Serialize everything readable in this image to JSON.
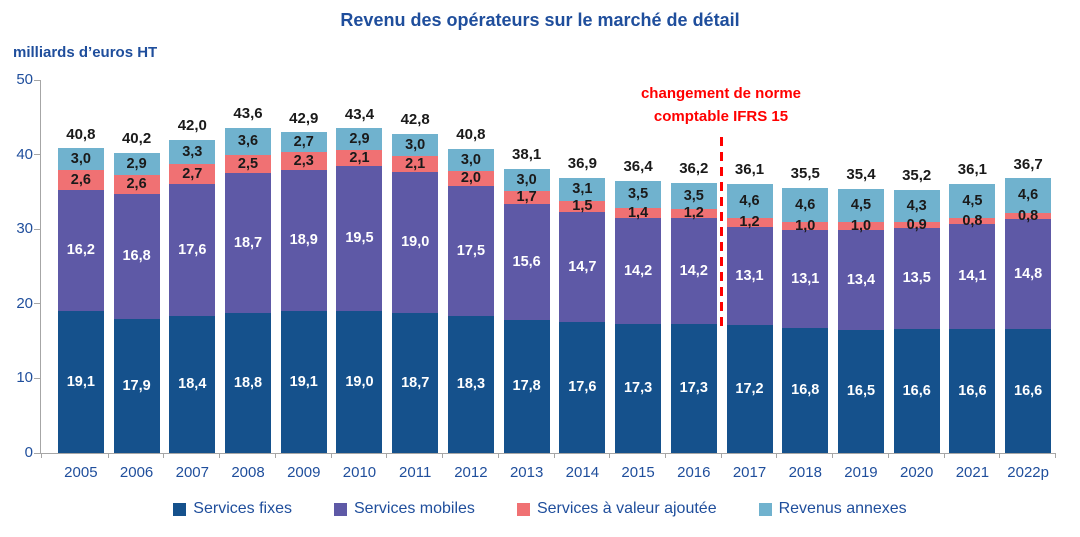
{
  "chart_data": {
    "type": "bar",
    "stacked": true,
    "title": "Revenu des opérateurs sur le marché de détail",
    "unit_label": "milliards d’euros HT",
    "ylim": [
      0,
      50
    ],
    "yticks": [
      0,
      10,
      20,
      30,
      40,
      50
    ],
    "grid": false,
    "legend_position": "bottom",
    "categories": [
      "2005",
      "2006",
      "2007",
      "2008",
      "2009",
      "2010",
      "2011",
      "2012",
      "2013",
      "2014",
      "2015",
      "2016",
      "2017",
      "2018",
      "2019",
      "2020",
      "2021",
      "2022p"
    ],
    "series": [
      {
        "name": "Services fixes",
        "color": "#15518C",
        "label_color": "#FFFFFF",
        "values": [
          19.1,
          17.9,
          18.4,
          18.8,
          19.1,
          19.0,
          18.7,
          18.3,
          17.8,
          17.6,
          17.3,
          17.3,
          17.2,
          16.8,
          16.5,
          16.6,
          16.6,
          16.6
        ],
        "labels": [
          "19,1",
          "17,9",
          "18,4",
          "18,8",
          "19,1",
          "19,0",
          "18,7",
          "18,3",
          "17,8",
          "17,6",
          "17,3",
          "17,3",
          "17,2",
          "16,8",
          "16,5",
          "16,6",
          "16,6",
          "16,6"
        ]
      },
      {
        "name": "Services mobiles",
        "color": "#5E59A6",
        "label_color": "#FFFFFF",
        "values": [
          16.2,
          16.8,
          17.6,
          18.7,
          18.9,
          19.5,
          19.0,
          17.5,
          15.6,
          14.7,
          14.2,
          14.2,
          13.1,
          13.1,
          13.4,
          13.5,
          14.1,
          14.8
        ],
        "labels": [
          "16,2",
          "16,8",
          "17,6",
          "18,7",
          "18,9",
          "19,5",
          "19,0",
          "17,5",
          "15,6",
          "14,7",
          "14,2",
          "14,2",
          "13,1",
          "13,1",
          "13,4",
          "13,5",
          "14,1",
          "14,8"
        ]
      },
      {
        "name": "Services à valeur ajoutée",
        "color": "#F07173",
        "label_color": "#1A1A1A",
        "values": [
          2.6,
          2.6,
          2.7,
          2.5,
          2.3,
          2.1,
          2.1,
          2.0,
          1.7,
          1.5,
          1.4,
          1.2,
          1.2,
          1.0,
          1.0,
          0.9,
          0.8,
          0.8
        ],
        "labels": [
          "2,6",
          "2,6",
          "2,7",
          "2,5",
          "2,3",
          "2,1",
          "2,1",
          "2,0",
          "1,7",
          "1,5",
          "1,4",
          "1,2",
          "1,2",
          "1,0",
          "1,0",
          "0,9",
          "0,8",
          "0,8"
        ]
      },
      {
        "name": "Revenus annexes",
        "color": "#70B2CE",
        "label_color": "#1A1A1A",
        "values": [
          3.0,
          2.9,
          3.3,
          3.6,
          2.7,
          2.9,
          3.0,
          3.0,
          3.0,
          3.1,
          3.5,
          3.5,
          4.6,
          4.6,
          4.5,
          4.3,
          4.5,
          4.6
        ],
        "labels": [
          "3,0",
          "2,9",
          "3,3",
          "3,6",
          "2,7",
          "2,9",
          "3,0",
          "3,0",
          "3,0",
          "3,1",
          "3,5",
          "3,5",
          "4,6",
          "4,6",
          "4,5",
          "4,3",
          "4,5",
          "4,6"
        ]
      }
    ],
    "totals": {
      "values": [
        40.8,
        40.2,
        42.0,
        43.6,
        42.9,
        43.4,
        42.8,
        40.8,
        38.1,
        36.9,
        36.4,
        36.2,
        36.1,
        35.5,
        35.4,
        35.2,
        36.1,
        36.7
      ],
      "labels": [
        "40,8",
        "40,2",
        "42,0",
        "43,6",
        "42,9",
        "43,4",
        "42,8",
        "40,8",
        "38,1",
        "36,9",
        "36,4",
        "36,2",
        "36,1",
        "35,5",
        "35,4",
        "35,2",
        "36,1",
        "36,7"
      ]
    },
    "annotation": {
      "lines": [
        "changement de norme",
        "comptable IFRS 15"
      ],
      "after_category": "2016"
    },
    "colors": {
      "text_blue": "#1F4E9C",
      "axis_line": "#A6A6A6",
      "total_label": "#1A1A1A",
      "annotation_red": "#FF0000",
      "background": "#FFFFFF"
    }
  }
}
